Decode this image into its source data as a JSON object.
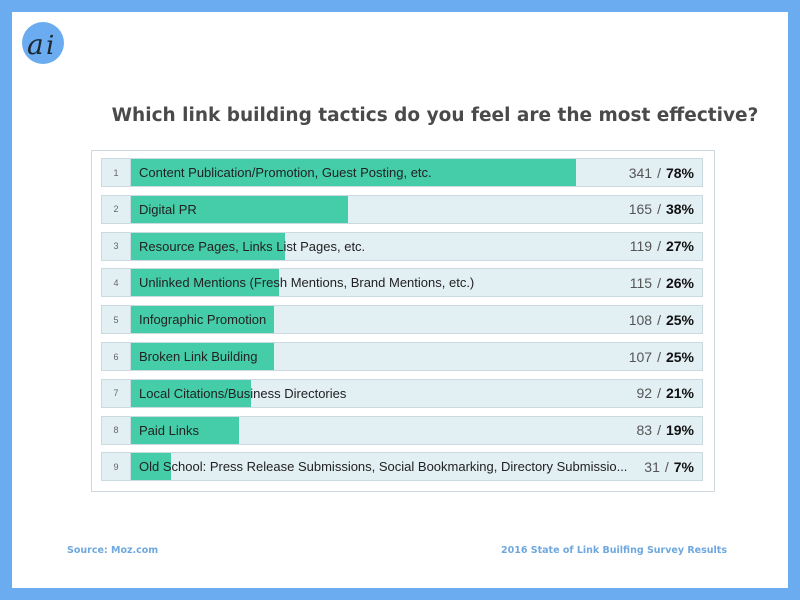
{
  "logo": {
    "icon": "ai-logo-icon",
    "color": "#6aacef"
  },
  "chart_data": {
    "type": "bar",
    "orientation": "horizontal",
    "title": "Which link building tactics do you feel are the most effective?",
    "grid": false,
    "bar_color": "#45cca8",
    "track_color": "#e2eff3",
    "xlim": [
      0,
      100
    ],
    "rows": [
      {
        "rank": "1",
        "label": "Content Publication/Promotion, Guest Posting, etc.",
        "count": "341",
        "percent": "78%",
        "value": 78
      },
      {
        "rank": "2",
        "label": "Digital PR",
        "count": "165",
        "percent": "38%",
        "value": 38
      },
      {
        "rank": "3",
        "label": "Resource Pages, Links List Pages, etc.",
        "count": "119",
        "percent": "27%",
        "value": 27
      },
      {
        "rank": "4",
        "label": "Unlinked Mentions (Fresh Mentions, Brand Mentions, etc.)",
        "count": "115",
        "percent": "26%",
        "value": 26
      },
      {
        "rank": "5",
        "label": "Infographic Promotion",
        "count": "108",
        "percent": "25%",
        "value": 25
      },
      {
        "rank": "6",
        "label": "Broken Link Building",
        "count": "107",
        "percent": "25%",
        "value": 25
      },
      {
        "rank": "7",
        "label": "Local Citations/Business Directories",
        "count": "92",
        "percent": "21%",
        "value": 21
      },
      {
        "rank": "8",
        "label": "Paid Links",
        "count": "83",
        "percent": "19%",
        "value": 19
      },
      {
        "rank": "9",
        "label": "Old School: Press Release Submissions, Social Bookmarking, Directory Submissio...",
        "count": "31",
        "percent": "7%",
        "value": 7
      }
    ]
  },
  "footer": {
    "source": "Source: Moz.com",
    "caption": "2016 State of Link Builfing Survey Results"
  }
}
